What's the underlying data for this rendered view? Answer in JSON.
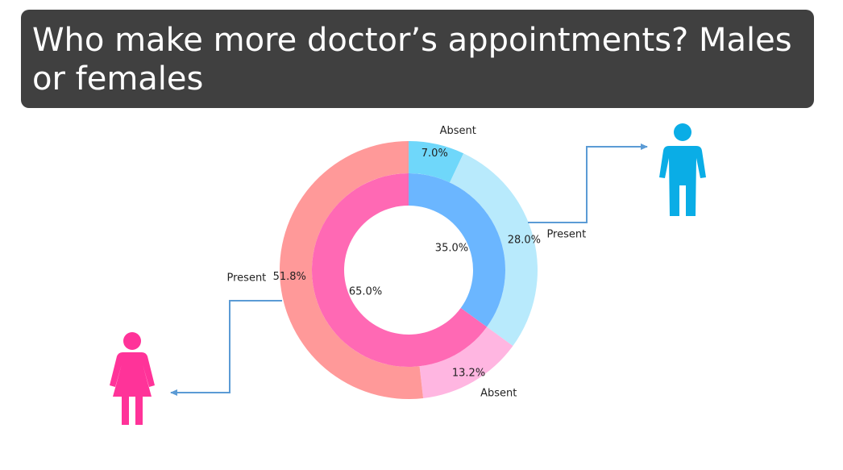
{
  "title": "Who make more doctor’s appointments? Males or females",
  "chart_data": {
    "type": "donut",
    "inner_ring": {
      "slices": [
        {
          "group": "male",
          "value": 35.0,
          "pct_label": "35.0%",
          "color": "#6BB6FF"
        },
        {
          "group": "female",
          "value": 65.0,
          "pct_label": "65.0%",
          "color": "#FF69B4"
        }
      ]
    },
    "outer_ring": {
      "slices": [
        {
          "group": "male",
          "status": "Absent",
          "value": 7.0,
          "pct_label": "7.0%",
          "color": "#6FD7FA"
        },
        {
          "group": "male",
          "status": "Present",
          "value": 28.0,
          "pct_label": "28.0%",
          "color": "#B8EAFC"
        },
        {
          "group": "female",
          "status": "Absent",
          "value": 13.2,
          "pct_label": "13.2%",
          "color": "#FFB6E1"
        },
        {
          "group": "female",
          "status": "Present",
          "value": 51.8,
          "pct_label": "51.8%",
          "color": "#FF9999"
        }
      ]
    },
    "male_icon_color": "#0AADE6",
    "female_icon_color": "#FF3399",
    "connector_color": "#5B9BD5"
  }
}
